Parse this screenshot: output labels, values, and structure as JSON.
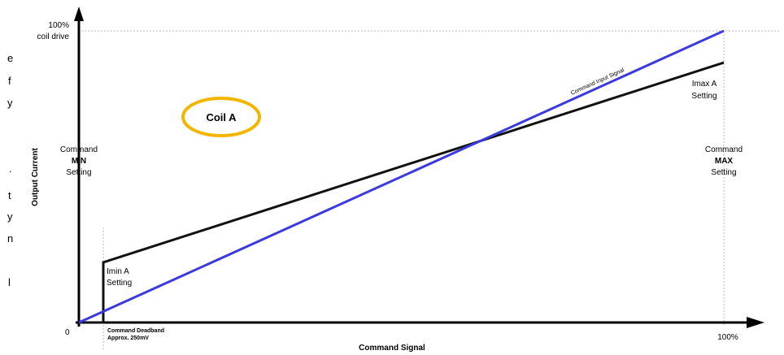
{
  "left_fragments": [
    "e",
    "f",
    "y",
    ".",
    "t",
    "y",
    "n",
    "l"
  ],
  "labels": {
    "top_pct": "100%",
    "top_coil": "coil drive",
    "y_axis": "Output Current",
    "x_axis": "Command Signal",
    "origin": "0",
    "x_100": "100%",
    "coil": "Coil A",
    "cmd_min": [
      "Command",
      "MIN",
      "Setting"
    ],
    "cmd_max": [
      "Command",
      "MAX",
      "Setting"
    ],
    "imax": [
      "Imax A",
      "Setting"
    ],
    "imin": [
      "Imin A",
      "Setting"
    ],
    "input_signal": "Command Input Signal",
    "deadband": [
      "Command Deadband",
      "Approx. 250mV"
    ]
  },
  "colors": {
    "axis": "#000000",
    "output_curve": "#111111",
    "input_signal": "#3a3adf",
    "coil_ring": "#f2b600",
    "guide": "#bbbbbb"
  }
}
